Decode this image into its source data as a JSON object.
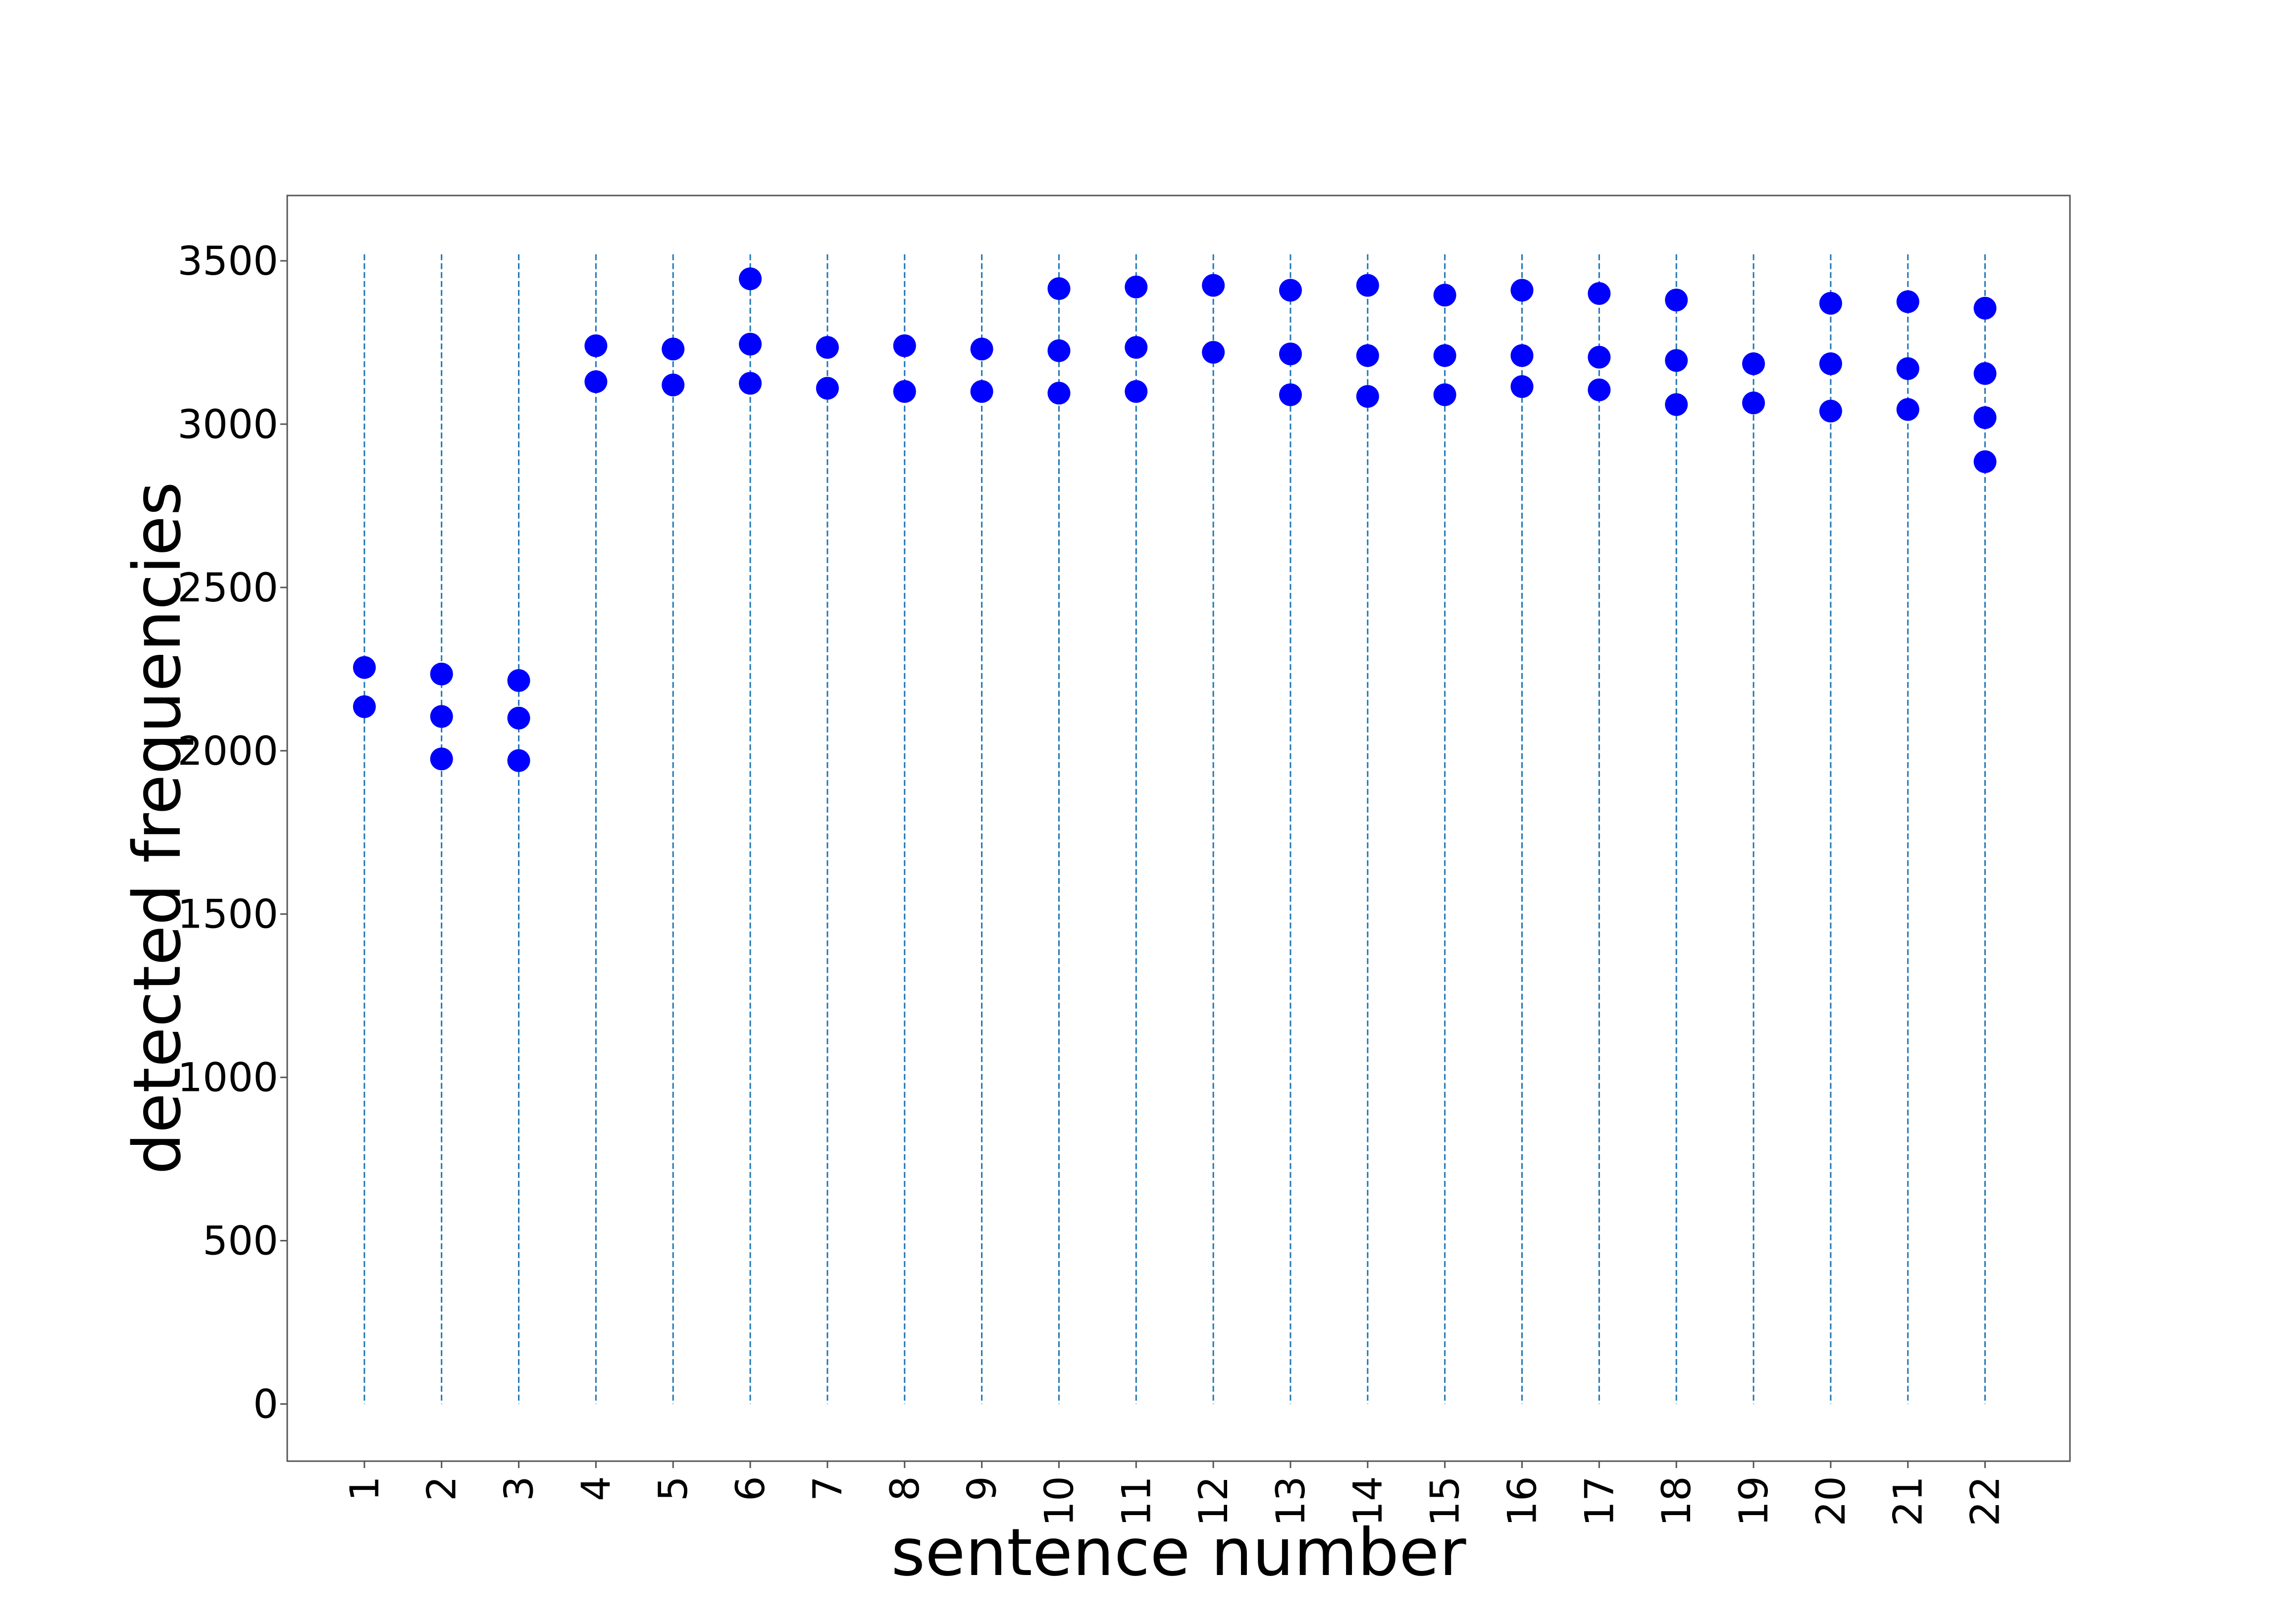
{
  "chart_data": {
    "type": "scatter",
    "title": "",
    "xlabel": "sentence number",
    "ylabel": "detected frequencies",
    "x_ticks": [
      "1",
      "2",
      "3",
      "4",
      "5",
      "6",
      "7",
      "8",
      "9",
      "10",
      "11",
      "12",
      "13",
      "14",
      "15",
      "16",
      "17",
      "18",
      "19",
      "20",
      "21",
      "22"
    ],
    "y_ticks": [
      0,
      500,
      1000,
      1500,
      2000,
      2500,
      3000,
      3500
    ],
    "ylim": [
      -175,
      3700
    ],
    "xlim": [
      0,
      23.1
    ],
    "grid": "vertical dashed lines at each sentence number, from 0 to 3520",
    "grid_top": 3520,
    "legend": "none",
    "colors": {
      "points": "#0000ff",
      "grid": "#1f77b4",
      "frame": "#555555"
    },
    "series": [
      {
        "points": [
          [
            1,
            2255
          ],
          [
            1,
            2135
          ],
          [
            2,
            2235
          ],
          [
            2,
            2105
          ],
          [
            2,
            1975
          ],
          [
            3,
            2215
          ],
          [
            3,
            2100
          ],
          [
            3,
            1970
          ],
          [
            4,
            3240
          ],
          [
            4,
            3130
          ],
          [
            5,
            3230
          ],
          [
            5,
            3120
          ],
          [
            6,
            3445
          ],
          [
            6,
            3245
          ],
          [
            6,
            3125
          ],
          [
            7,
            3235
          ],
          [
            7,
            3110
          ],
          [
            8,
            3240
          ],
          [
            8,
            3100
          ],
          [
            9,
            3230
          ],
          [
            9,
            3100
          ],
          [
            10,
            3415
          ],
          [
            10,
            3225
          ],
          [
            10,
            3095
          ],
          [
            11,
            3420
          ],
          [
            11,
            3235
          ],
          [
            11,
            3100
          ],
          [
            12,
            3425
          ],
          [
            12,
            3220
          ],
          [
            13,
            3410
          ],
          [
            13,
            3215
          ],
          [
            13,
            3090
          ],
          [
            14,
            3425
          ],
          [
            14,
            3210
          ],
          [
            14,
            3085
          ],
          [
            15,
            3395
          ],
          [
            15,
            3210
          ],
          [
            15,
            3090
          ],
          [
            16,
            3410
          ],
          [
            16,
            3210
          ],
          [
            16,
            3115
          ],
          [
            17,
            3400
          ],
          [
            17,
            3205
          ],
          [
            17,
            3105
          ],
          [
            18,
            3380
          ],
          [
            18,
            3195
          ],
          [
            18,
            3060
          ],
          [
            19,
            3185
          ],
          [
            19,
            3065
          ],
          [
            20,
            3370
          ],
          [
            20,
            3185
          ],
          [
            20,
            3040
          ],
          [
            21,
            3375
          ],
          [
            21,
            3170
          ],
          [
            21,
            3045
          ],
          [
            22,
            3355
          ],
          [
            22,
            3155
          ],
          [
            22,
            3020
          ],
          [
            22,
            2885
          ]
        ]
      }
    ]
  }
}
